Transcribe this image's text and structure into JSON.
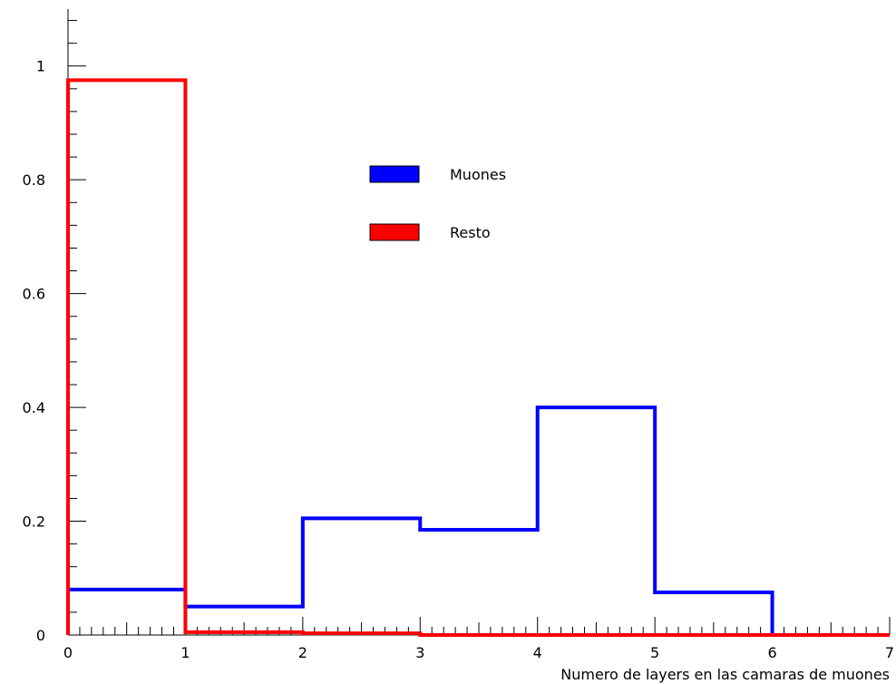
{
  "chart_data": {
    "type": "step",
    "title": "",
    "xlabel": "Numero de layers en las camaras de muones",
    "ylabel": "",
    "xlim": [
      0,
      7
    ],
    "ylim": [
      0,
      1.1
    ],
    "x_ticks": [
      0,
      1,
      2,
      3,
      4,
      5,
      6,
      7
    ],
    "x_tick_labels": [
      "0",
      "1",
      "2",
      "3",
      "4",
      "5",
      "6",
      "7"
    ],
    "y_ticks": [
      0,
      0.2,
      0.4,
      0.6,
      0.8,
      1
    ],
    "y_tick_labels": [
      "0",
      "0.2",
      "0.4",
      "0.6",
      "0.8",
      "1"
    ],
    "bin_edges": [
      0,
      1,
      2,
      3,
      4,
      5,
      6,
      7
    ],
    "grid": false,
    "legend_position": "upper-center",
    "series": [
      {
        "name": "Muones",
        "color": "#0000ff",
        "values": [
          0.08,
          0.05,
          0.205,
          0.185,
          0.4,
          0.075,
          0.0
        ]
      },
      {
        "name": "Resto",
        "color": "#ff0000",
        "values": [
          0.975,
          0.005,
          0.003,
          0.0,
          0.0,
          0.0,
          0.0
        ]
      }
    ]
  }
}
